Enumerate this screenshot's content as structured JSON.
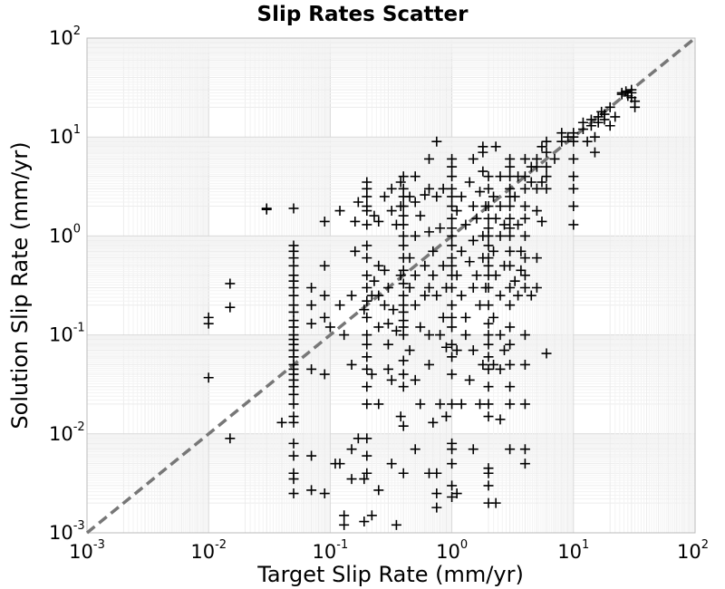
{
  "chart_data": {
    "type": "scatter",
    "title": "Slip Rates Scatter",
    "xlabel": "Target Slip Rate (mm/yr)",
    "ylabel": "Solution Slip Rate (mm/yr)",
    "xscale": "log",
    "yscale": "log",
    "xlim": [
      0.001,
      100
    ],
    "ylim": [
      0.001,
      100
    ],
    "grid": true,
    "marker": "plus",
    "marker_color": "#000000",
    "reference_line": {
      "style": "dashed",
      "color": "#777777",
      "points": [
        [
          0.001,
          0.001
        ],
        [
          100,
          100
        ]
      ]
    },
    "ticks": [
      {
        "base": "10",
        "exp": "-3",
        "value": 0.001
      },
      {
        "base": "10",
        "exp": "-2",
        "value": 0.01
      },
      {
        "base": "10",
        "exp": "-1",
        "value": 0.1
      },
      {
        "base": "10",
        "exp": "0",
        "value": 1
      },
      {
        "base": "10",
        "exp": "1",
        "value": 10
      },
      {
        "base": "10",
        "exp": "2",
        "value": 100
      }
    ],
    "points": [
      [
        0.01,
        0.15
      ],
      [
        0.01,
        0.13
      ],
      [
        0.01,
        0.037
      ],
      [
        0.015,
        0.33
      ],
      [
        0.015,
        0.19
      ],
      [
        0.015,
        0.009
      ],
      [
        0.03,
        1.9
      ],
      [
        0.03,
        1.85
      ],
      [
        0.05,
        1.9
      ],
      [
        0.05,
        0.8
      ],
      [
        0.05,
        0.7
      ],
      [
        0.05,
        0.6
      ],
      [
        0.05,
        0.5
      ],
      [
        0.05,
        0.4
      ],
      [
        0.05,
        0.35
      ],
      [
        0.05,
        0.3
      ],
      [
        0.05,
        0.25
      ],
      [
        0.05,
        0.2
      ],
      [
        0.05,
        0.17
      ],
      [
        0.05,
        0.14
      ],
      [
        0.05,
        0.12
      ],
      [
        0.05,
        0.1
      ],
      [
        0.05,
        0.09
      ],
      [
        0.05,
        0.08
      ],
      [
        0.05,
        0.07
      ],
      [
        0.05,
        0.06
      ],
      [
        0.05,
        0.05
      ],
      [
        0.05,
        0.045
      ],
      [
        0.05,
        0.04
      ],
      [
        0.05,
        0.035
      ],
      [
        0.05,
        0.03
      ],
      [
        0.05,
        0.025
      ],
      [
        0.05,
        0.02
      ],
      [
        0.05,
        0.015
      ],
      [
        0.05,
        0.013
      ],
      [
        0.05,
        0.008
      ],
      [
        0.05,
        0.006
      ],
      [
        0.05,
        0.004
      ],
      [
        0.05,
        0.0035
      ],
      [
        0.05,
        0.0025
      ],
      [
        0.04,
        0.013
      ],
      [
        0.07,
        0.3
      ],
      [
        0.07,
        0.2
      ],
      [
        0.07,
        0.13
      ],
      [
        0.07,
        0.045
      ],
      [
        0.07,
        0.006
      ],
      [
        0.07,
        0.0027
      ],
      [
        0.09,
        1.4
      ],
      [
        0.09,
        0.5
      ],
      [
        0.09,
        0.25
      ],
      [
        0.09,
        0.15
      ],
      [
        0.09,
        0.04
      ],
      [
        0.09,
        0.0025
      ],
      [
        0.1,
        0.12
      ],
      [
        0.11,
        0.005
      ],
      [
        0.12,
        1.8
      ],
      [
        0.12,
        0.2
      ],
      [
        0.12,
        0.005
      ],
      [
        0.13,
        0.1
      ],
      [
        0.13,
        0.0015
      ],
      [
        0.13,
        0.0012
      ],
      [
        0.15,
        0.25
      ],
      [
        0.15,
        0.05
      ],
      [
        0.15,
        0.007
      ],
      [
        0.15,
        0.0035
      ],
      [
        0.16,
        1.4
      ],
      [
        0.16,
        0.7
      ],
      [
        0.17,
        2.2
      ],
      [
        0.17,
        0.009
      ],
      [
        0.19,
        0.18
      ],
      [
        0.19,
        0.0035
      ],
      [
        0.19,
        0.0013
      ],
      [
        0.2,
        3.5
      ],
      [
        0.2,
        3.0
      ],
      [
        0.2,
        2.5
      ],
      [
        0.2,
        2.0
      ],
      [
        0.2,
        1.8
      ],
      [
        0.2,
        1.3
      ],
      [
        0.2,
        0.8
      ],
      [
        0.2,
        0.6
      ],
      [
        0.2,
        0.4
      ],
      [
        0.2,
        0.3
      ],
      [
        0.2,
        0.22
      ],
      [
        0.2,
        0.15
      ],
      [
        0.2,
        0.1
      ],
      [
        0.2,
        0.08
      ],
      [
        0.2,
        0.06
      ],
      [
        0.2,
        0.045
      ],
      [
        0.2,
        0.03
      ],
      [
        0.2,
        0.02
      ],
      [
        0.2,
        0.009
      ],
      [
        0.2,
        0.006
      ],
      [
        0.2,
        0.004
      ],
      [
        0.22,
        0.25
      ],
      [
        0.22,
        0.04
      ],
      [
        0.22,
        0.0015
      ],
      [
        0.23,
        1.6
      ],
      [
        0.23,
        0.35
      ],
      [
        0.25,
        1.4
      ],
      [
        0.25,
        0.5
      ],
      [
        0.25,
        0.25
      ],
      [
        0.25,
        0.12
      ],
      [
        0.25,
        0.02
      ],
      [
        0.25,
        0.0027
      ],
      [
        0.28,
        2.5
      ],
      [
        0.28,
        0.45
      ],
      [
        0.28,
        0.2
      ],
      [
        0.3,
        0.3
      ],
      [
        0.3,
        0.13
      ],
      [
        0.3,
        0.08
      ],
      [
        0.3,
        0.045
      ],
      [
        0.32,
        3.0
      ],
      [
        0.32,
        1.8
      ],
      [
        0.32,
        0.035
      ],
      [
        0.32,
        0.005
      ],
      [
        0.33,
        0.18
      ],
      [
        0.35,
        1.3
      ],
      [
        0.35,
        0.11
      ],
      [
        0.35,
        0.0012
      ],
      [
        0.38,
        3.5
      ],
      [
        0.38,
        2.0
      ],
      [
        0.38,
        0.4
      ],
      [
        0.38,
        0.015
      ],
      [
        0.4,
        4.0
      ],
      [
        0.4,
        3.0
      ],
      [
        0.4,
        2.5
      ],
      [
        0.4,
        2.0
      ],
      [
        0.4,
        1.6
      ],
      [
        0.4,
        1.3
      ],
      [
        0.4,
        1.0
      ],
      [
        0.4,
        0.8
      ],
      [
        0.4,
        0.6
      ],
      [
        0.4,
        0.45
      ],
      [
        0.4,
        0.33
      ],
      [
        0.4,
        0.25
      ],
      [
        0.4,
        0.2
      ],
      [
        0.4,
        0.17
      ],
      [
        0.4,
        0.14
      ],
      [
        0.4,
        0.12
      ],
      [
        0.4,
        0.1
      ],
      [
        0.4,
        0.055
      ],
      [
        0.4,
        0.04
      ],
      [
        0.4,
        0.03
      ],
      [
        0.4,
        0.012
      ],
      [
        0.4,
        0.004
      ],
      [
        0.45,
        2.5
      ],
      [
        0.45,
        0.6
      ],
      [
        0.45,
        0.3
      ],
      [
        0.45,
        0.07
      ],
      [
        0.5,
        4.0
      ],
      [
        0.5,
        2.2
      ],
      [
        0.5,
        1.0
      ],
      [
        0.5,
        0.4
      ],
      [
        0.5,
        0.2
      ],
      [
        0.5,
        0.035
      ],
      [
        0.5,
        0.007
      ],
      [
        0.55,
        1.6
      ],
      [
        0.55,
        0.12
      ],
      [
        0.55,
        0.02
      ],
      [
        0.6,
        2.6
      ],
      [
        0.6,
        0.5
      ],
      [
        0.6,
        0.25
      ],
      [
        0.65,
        6.0
      ],
      [
        0.65,
        3.0
      ],
      [
        0.65,
        1.1
      ],
      [
        0.65,
        0.3
      ],
      [
        0.65,
        0.1
      ],
      [
        0.65,
        0.05
      ],
      [
        0.65,
        0.004
      ],
      [
        0.7,
        0.7
      ],
      [
        0.7,
        0.4
      ],
      [
        0.7,
        0.013
      ],
      [
        0.75,
        9.0
      ],
      [
        0.75,
        2.5
      ],
      [
        0.75,
        0.25
      ],
      [
        0.75,
        0.004
      ],
      [
        0.75,
        0.0025
      ],
      [
        0.75,
        0.0018
      ],
      [
        0.8,
        1.2
      ],
      [
        0.8,
        0.1
      ],
      [
        0.8,
        0.02
      ],
      [
        0.85,
        3.0
      ],
      [
        0.85,
        0.5
      ],
      [
        0.85,
        0.15
      ],
      [
        0.9,
        0.075
      ],
      [
        0.9,
        0.3
      ],
      [
        0.9,
        0.015
      ],
      [
        1.0,
        6.0
      ],
      [
        1.0,
        5.0
      ],
      [
        1.0,
        4.0
      ],
      [
        1.0,
        3.0
      ],
      [
        1.0,
        2.5
      ],
      [
        1.0,
        2.0
      ],
      [
        1.0,
        1.5
      ],
      [
        1.0,
        1.2
      ],
      [
        1.0,
        1.0
      ],
      [
        1.0,
        0.8
      ],
      [
        1.0,
        0.6
      ],
      [
        1.0,
        0.5
      ],
      [
        1.0,
        0.4
      ],
      [
        1.0,
        0.3
      ],
      [
        1.0,
        0.2
      ],
      [
        1.0,
        0.15
      ],
      [
        1.0,
        0.12
      ],
      [
        1.0,
        0.08
      ],
      [
        1.0,
        0.06
      ],
      [
        1.0,
        0.04
      ],
      [
        1.0,
        0.02
      ],
      [
        1.0,
        0.008
      ],
      [
        1.0,
        0.007
      ],
      [
        1.0,
        0.005
      ],
      [
        1.0,
        0.003
      ],
      [
        1.0,
        0.0023
      ],
      [
        1.1,
        1.8
      ],
      [
        1.1,
        0.4
      ],
      [
        1.1,
        0.07
      ],
      [
        1.1,
        0.0025
      ],
      [
        1.2,
        2.5
      ],
      [
        1.2,
        0.7
      ],
      [
        1.2,
        0.25
      ],
      [
        1.2,
        0.02
      ],
      [
        1.3,
        1.3
      ],
      [
        1.3,
        0.15
      ],
      [
        1.3,
        0.1
      ],
      [
        1.4,
        3.5
      ],
      [
        1.4,
        0.55
      ],
      [
        1.4,
        0.035
      ],
      [
        1.5,
        6.0
      ],
      [
        1.5,
        2.0
      ],
      [
        1.5,
        0.9
      ],
      [
        1.5,
        0.3
      ],
      [
        1.5,
        0.07
      ],
      [
        1.5,
        0.007
      ],
      [
        1.6,
        1.5
      ],
      [
        1.6,
        0.4
      ],
      [
        1.7,
        2.8
      ],
      [
        1.7,
        0.2
      ],
      [
        1.7,
        0.02
      ],
      [
        1.8,
        8.0
      ],
      [
        1.8,
        7.0
      ],
      [
        1.8,
        4.5
      ],
      [
        1.8,
        1.0
      ],
      [
        1.8,
        0.6
      ],
      [
        1.8,
        0.05
      ],
      [
        1.9,
        2.0
      ],
      [
        1.9,
        0.3
      ],
      [
        2.0,
        4.0
      ],
      [
        2.0,
        3.0
      ],
      [
        2.0,
        2.0
      ],
      [
        2.0,
        1.5
      ],
      [
        2.0,
        1.2
      ],
      [
        2.0,
        1.0
      ],
      [
        2.0,
        0.8
      ],
      [
        2.0,
        0.6
      ],
      [
        2.0,
        0.5
      ],
      [
        2.0,
        0.4
      ],
      [
        2.0,
        0.3
      ],
      [
        2.0,
        0.2
      ],
      [
        2.0,
        0.13
      ],
      [
        2.0,
        0.1
      ],
      [
        2.0,
        0.08
      ],
      [
        2.0,
        0.06
      ],
      [
        2.0,
        0.045
      ],
      [
        2.0,
        0.03
      ],
      [
        2.0,
        0.02
      ],
      [
        2.0,
        0.015
      ],
      [
        2.0,
        0.0045
      ],
      [
        2.0,
        0.004
      ],
      [
        2.0,
        0.003
      ],
      [
        2.0,
        0.002
      ],
      [
        2.2,
        2.5
      ],
      [
        2.2,
        0.7
      ],
      [
        2.2,
        0.15
      ],
      [
        2.2,
        0.05
      ],
      [
        2.3,
        8.0
      ],
      [
        2.3,
        1.5
      ],
      [
        2.3,
        0.4
      ],
      [
        2.3,
        0.002
      ],
      [
        2.5,
        4.0
      ],
      [
        2.5,
        2.0
      ],
      [
        2.5,
        1.0
      ],
      [
        2.5,
        0.25
      ],
      [
        2.5,
        0.1
      ],
      [
        2.5,
        0.045
      ],
      [
        2.5,
        0.014
      ],
      [
        2.7,
        1.3
      ],
      [
        2.7,
        0.5
      ],
      [
        2.7,
        0.07
      ],
      [
        3.0,
        6.0
      ],
      [
        3.0,
        5.0
      ],
      [
        3.0,
        4.0
      ],
      [
        3.0,
        3.0
      ],
      [
        3.0,
        2.5
      ],
      [
        3.0,
        2.0
      ],
      [
        3.0,
        1.5
      ],
      [
        3.0,
        1.2
      ],
      [
        3.0,
        1.0
      ],
      [
        3.0,
        0.7
      ],
      [
        3.0,
        0.5
      ],
      [
        3.0,
        0.3
      ],
      [
        3.0,
        0.2
      ],
      [
        3.0,
        0.12
      ],
      [
        3.0,
        0.08
      ],
      [
        3.0,
        0.05
      ],
      [
        3.0,
        0.03
      ],
      [
        3.0,
        0.02
      ],
      [
        3.0,
        0.007
      ],
      [
        3.3,
        2.5
      ],
      [
        3.3,
        0.35
      ],
      [
        3.5,
        4.0
      ],
      [
        3.5,
        1.3
      ],
      [
        3.5,
        0.25
      ],
      [
        3.7,
        0.7
      ],
      [
        3.7,
        0.45
      ],
      [
        4.0,
        6.0
      ],
      [
        4.0,
        4.0
      ],
      [
        4.0,
        3.0
      ],
      [
        4.0,
        2.0
      ],
      [
        4.0,
        1.5
      ],
      [
        4.0,
        1.0
      ],
      [
        4.0,
        0.6
      ],
      [
        4.0,
        0.4
      ],
      [
        4.0,
        0.3
      ],
      [
        4.0,
        0.1
      ],
      [
        4.0,
        0.05
      ],
      [
        4.0,
        0.02
      ],
      [
        4.0,
        0.007
      ],
      [
        4.0,
        0.005
      ],
      [
        4.5,
        5.0
      ],
      [
        4.5,
        3.5
      ],
      [
        4.5,
        0.25
      ],
      [
        5.0,
        6.0
      ],
      [
        5.0,
        5.0
      ],
      [
        5.0,
        3.0
      ],
      [
        5.0,
        1.8
      ],
      [
        5.0,
        0.6
      ],
      [
        5.0,
        0.3
      ],
      [
        5.5,
        8.0
      ],
      [
        5.5,
        3.5
      ],
      [
        5.5,
        1.4
      ],
      [
        6.0,
        9.0
      ],
      [
        6.0,
        7.0
      ],
      [
        6.0,
        5.0
      ],
      [
        6.0,
        4.0
      ],
      [
        6.0,
        3.0
      ],
      [
        6.0,
        0.065
      ],
      [
        7.0,
        6.0
      ],
      [
        8.0,
        11.0
      ],
      [
        8.0,
        9.0
      ],
      [
        9.0,
        10.0
      ],
      [
        10.0,
        11.0
      ],
      [
        10.0,
        10.0
      ],
      [
        10.0,
        9.0
      ],
      [
        10.0,
        6.0
      ],
      [
        10.0,
        4.0
      ],
      [
        10.0,
        3.0
      ],
      [
        10.0,
        2.0
      ],
      [
        10.0,
        1.3
      ],
      [
        12.0,
        14.0
      ],
      [
        12.0,
        12.0
      ],
      [
        13.0,
        9.0
      ],
      [
        14.0,
        15.0
      ],
      [
        14.0,
        13.0
      ],
      [
        15.0,
        10.0
      ],
      [
        15.0,
        7.0
      ],
      [
        16.0,
        16.0
      ],
      [
        16.0,
        14.0
      ],
      [
        17.0,
        18.0
      ],
      [
        18.0,
        17.0
      ],
      [
        18.0,
        15.0
      ],
      [
        20.0,
        20.0
      ],
      [
        20.0,
        13.0
      ],
      [
        22.0,
        16.0
      ],
      [
        25.0,
        28.0
      ],
      [
        25.0,
        27.0
      ],
      [
        27.0,
        29.0
      ],
      [
        28.0,
        26.0
      ],
      [
        30.0,
        30.0
      ],
      [
        30.0,
        28.0
      ],
      [
        30.0,
        25.0
      ],
      [
        32.0,
        23.0
      ],
      [
        32.0,
        20.0
      ]
    ]
  }
}
